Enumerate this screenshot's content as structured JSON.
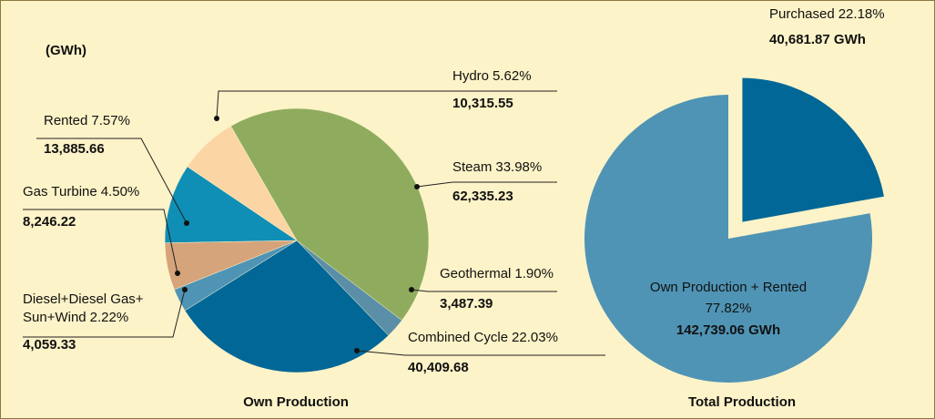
{
  "unit": "(GWh)",
  "chart_data": [
    {
      "type": "pie",
      "title": "Own Production",
      "categories": [
        "Steam",
        "Geothermal",
        "Combined Cycle",
        "Diesel+Diesel Gas+\nSun+Wind",
        "Gas Turbine",
        "Rented",
        "Hydro"
      ],
      "percent_labels": [
        "33.98%",
        "1.90%",
        "22.03%",
        "2.22%",
        "4.50%",
        "7.57%",
        "5.62%"
      ],
      "values": [
        62335.23,
        3487.39,
        40409.68,
        4059.33,
        8246.22,
        13885.66,
        10315.55
      ],
      "value_labels": [
        "62,335.23",
        "3,487.39",
        "40,409.68",
        "4,059.33",
        "8,246.22",
        "13,885.66",
        "10,315.55"
      ],
      "colors": [
        "#8fac5e",
        "#5b8fa8",
        "#006797",
        "#4f94b5",
        "#d6a47a",
        "#0f8fb5",
        "#fcd5a5"
      ]
    },
    {
      "type": "pie",
      "title": "Total Production",
      "categories": [
        "Purchased",
        "Own Production + Rented"
      ],
      "percent_labels": [
        "22.18%",
        "77.82%"
      ],
      "values": [
        40681.87,
        142739.06
      ],
      "value_labels": [
        "40,681.87 GWh",
        "142,739.06 GWh"
      ],
      "colors": [
        "#006797",
        "#4f94b5"
      ]
    }
  ]
}
